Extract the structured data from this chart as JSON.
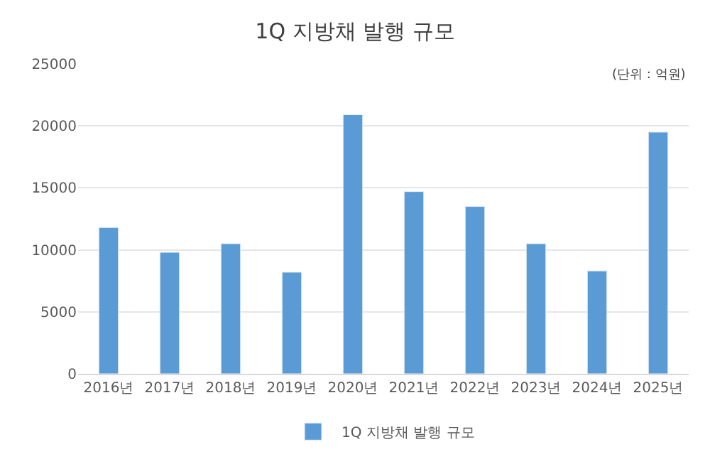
{
  "chart_data": {
    "type": "bar",
    "title": "1Q 지방채 발행 규모",
    "categories": [
      "2016년",
      "2017년",
      "2018년",
      "2019년",
      "2020년",
      "2021년",
      "2022년",
      "2023년",
      "2024년",
      "2025년"
    ],
    "series": [
      {
        "name": "1Q 지방채 발행 규모",
        "color": "#5b9bd5",
        "values": [
          11800,
          9800,
          10500,
          8200,
          20900,
          14700,
          13500,
          10500,
          8300,
          19500
        ]
      }
    ],
    "ylim": [
      0,
      25000
    ],
    "yticks": [
      0,
      5000,
      10000,
      15000,
      20000,
      25000
    ],
    "grid": "y",
    "legend": "bottom",
    "annotations": [
      "(단위 : 억원)"
    ]
  }
}
